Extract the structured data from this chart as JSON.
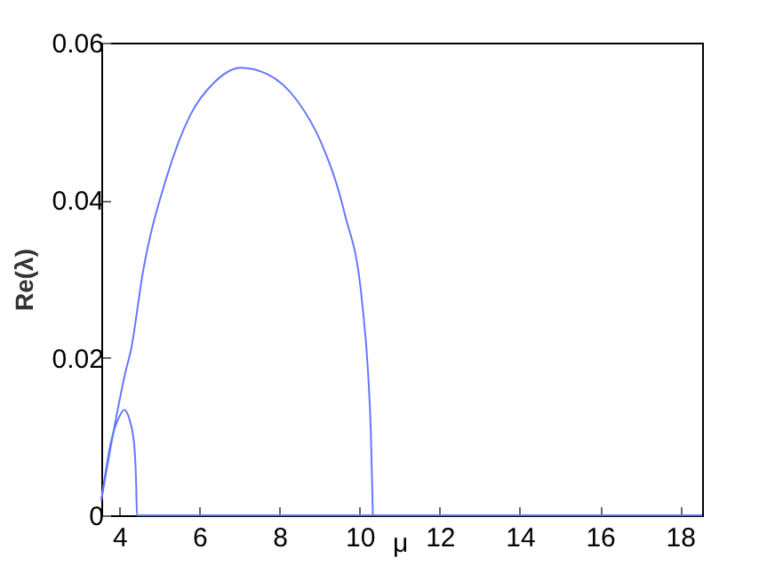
{
  "chart_data": {
    "type": "line",
    "xlabel": "μ",
    "ylabel": "Re(λ)",
    "xlim": [
      3.55,
      18.55
    ],
    "ylim": [
      0,
      0.06
    ],
    "xticks": [
      4,
      6,
      8,
      10,
      12,
      14,
      16,
      18
    ],
    "yticks": [
      0,
      0.02,
      0.04,
      0.06
    ],
    "grid": false,
    "legend": false,
    "marker": "none",
    "line_style": "solid",
    "series": [
      {
        "color": "#6677ff",
        "x": [
          3.55,
          3.85,
          4.15,
          4.29,
          4.59,
          5.18,
          5.77,
          6.36,
          7.03,
          7.69,
          8.43,
          9.03,
          9.62,
          10.06,
          10.21,
          10.28,
          10.33
        ],
        "values": [
          0.0019,
          0.0105,
          0.0181,
          0.021,
          0.0309,
          0.0429,
          0.0508,
          0.0549,
          0.0568,
          0.056,
          0.0527,
          0.0474,
          0.0384,
          0.0271,
          0.0181,
          0.0105,
          0
        ]
      },
      {
        "color": "#6677ff",
        "x": [
          3.55,
          3.8,
          4.0,
          4.12,
          4.25,
          4.37,
          4.42,
          4.44,
          18.55
        ],
        "values": [
          0.0019,
          0.0095,
          0.0125,
          0.0134,
          0.0122,
          0.009,
          0.004,
          0,
          0
        ]
      }
    ]
  }
}
